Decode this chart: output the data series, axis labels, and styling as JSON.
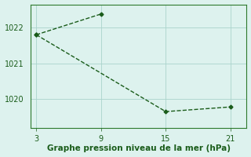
{
  "line1_x": [
    3,
    9
  ],
  "line1_y": [
    1021.8,
    1022.38
  ],
  "line2_x": [
    3,
    15,
    21
  ],
  "line2_y": [
    1021.8,
    1019.65,
    1019.78
  ],
  "color": "#1a5c1a",
  "bg_color": "#ddf2ee",
  "grid_color": "#aad4cc",
  "border_color": "#2d7a2d",
  "xlabel": "Graphe pression niveau de la mer (hPa)",
  "xticks": [
    3,
    9,
    15,
    21
  ],
  "yticks": [
    1020,
    1021,
    1022
  ],
  "xlim": [
    2.5,
    22.5
  ],
  "ylim": [
    1019.2,
    1022.65
  ],
  "marker": "D",
  "markersize": 2.5,
  "linewidth": 1.0,
  "xlabel_fontsize": 7.5,
  "tick_fontsize": 7
}
